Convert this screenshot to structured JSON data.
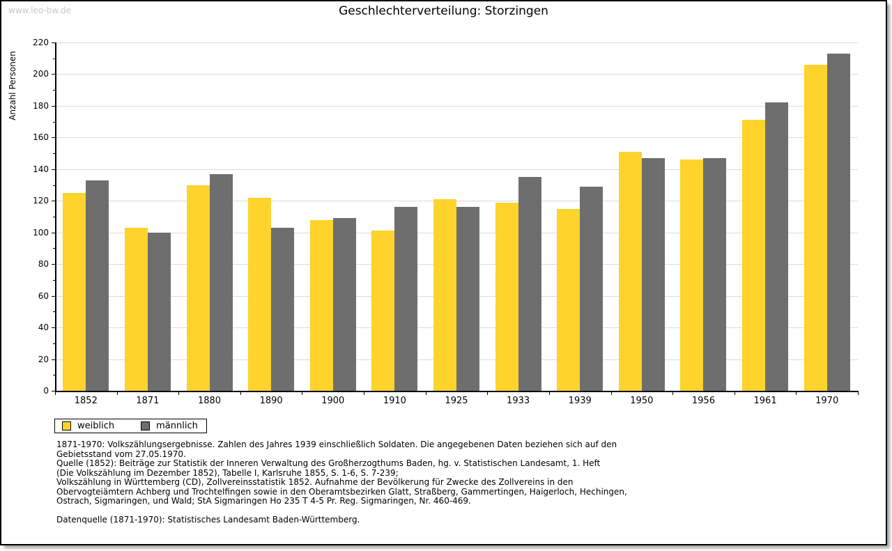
{
  "watermark": "www.leo-bw.de",
  "title": "Geschlechterverteilung: Storzingen",
  "chart_data": {
    "type": "bar",
    "title": "Geschlechterverteilung: Storzingen",
    "xlabel": "",
    "ylabel": "Anzahl Personen",
    "ylim": [
      0,
      220
    ],
    "ytick_step": 20,
    "yticks": [
      0,
      20,
      40,
      60,
      80,
      100,
      120,
      140,
      160,
      180,
      200,
      220
    ],
    "grid": true,
    "legend_position": "bottom-left",
    "categories": [
      "1852",
      "1871",
      "1880",
      "1890",
      "1900",
      "1910",
      "1925",
      "1933",
      "1939",
      "1950",
      "1956",
      "1961",
      "1970"
    ],
    "series": [
      {
        "name": "weiblich",
        "color": "#fdd32c",
        "values": [
          125,
          103,
          130,
          122,
          108,
          101,
          121,
          119,
          115,
          151,
          146,
          171,
          206
        ]
      },
      {
        "name": "männlich",
        "color": "#6e6e6e",
        "values": [
          133,
          100,
          137,
          103,
          109,
          116,
          116,
          135,
          129,
          147,
          147,
          182,
          213
        ]
      }
    ]
  },
  "colors": {
    "female_bar": "#fdd32c",
    "male_bar": "#6e6e6e",
    "gridline": "#dcdcdc",
    "axis": "#000000",
    "watermark": "#c8c8c8"
  },
  "footnotes": {
    "lines": [
      "1871-1970: Volkszählungsergebnisse. Zahlen des Jahres 1939 einschließlich Soldaten. Die angegebenen Daten beziehen sich auf den",
      "Gebietsstand vom 27.05.1970.",
      "Quelle (1852): Beiträge zur Statistik der Inneren Verwaltung des Großherzogthums Baden, hg. v. Statistischen Landesamt, 1. Heft",
      "(Die Volkszählung im Dezember 1852), Tabelle I, Karlsruhe 1855, S. 1-6, S. 7-239;",
      "Volkszählung in Württemberg (CD), Zollvereinsstatistik 1852. Aufnahme der Bevölkerung für Zwecke des Zollvereins in den",
      "Obervogteiämtern Achberg und Trochtelfingen sowie in den Oberamtsbezirken Glatt, Straßberg, Gammertingen, Haigerloch, Hechingen,",
      "Ostrach, Sigmaringen, und Wald; StA Sigmaringen Ho 235 T 4-5 Pr. Reg. Sigmaringen, Nr. 460-469."
    ],
    "datasource": "Datenquelle (1871-1970): Statistisches Landesamt Baden-Württemberg."
  }
}
